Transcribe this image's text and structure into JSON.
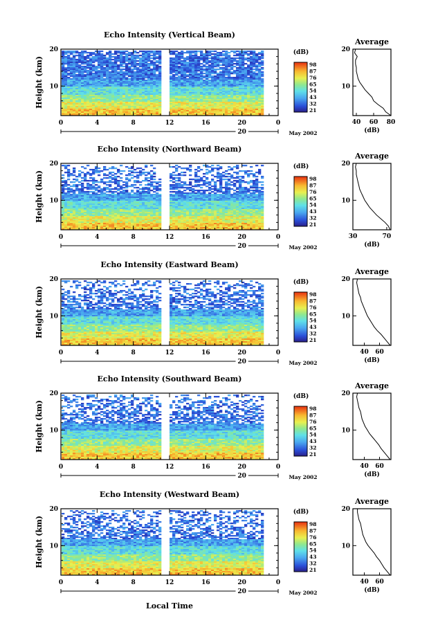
{
  "figure": {
    "date_label": "May 2002",
    "xlabel": "Local Time",
    "day_label": "20",
    "colorbar_unit": "(dB)",
    "colorbar_ticks": [
      "98",
      "87",
      "76",
      "65",
      "54",
      "43",
      "32",
      "21"
    ],
    "avg_title": "Average",
    "avg_xlabel": "(dB)"
  },
  "chart_data": [
    {
      "type": "heatmap",
      "title": "Echo Intensity (Vertical Beam)",
      "ylabel": "Height (km)",
      "xlim": [
        0,
        24
      ],
      "ylim": [
        2,
        20
      ],
      "x_ticks": [
        "0",
        "4",
        "8",
        "12",
        "16",
        "20",
        "0"
      ],
      "y_ticks": [
        "20",
        "10"
      ],
      "colorbar": {
        "range": [
          21,
          98
        ],
        "unit": "dB"
      },
      "data_gap_hours": [
        11.1,
        11.9
      ],
      "data_end_hour": 22.2,
      "average_profile": {
        "xlim": [
          36,
          80
        ],
        "x_ticks": [
          "40",
          "60",
          "80"
        ],
        "height_km": [
          2,
          3,
          4,
          5,
          6,
          7,
          8,
          9,
          10,
          11,
          12,
          13,
          14,
          15,
          16,
          17,
          18,
          19,
          20
        ],
        "db": [
          80,
          74,
          71,
          65,
          60,
          58,
          54,
          50,
          47,
          44,
          42,
          41,
          40,
          40,
          39,
          39,
          41,
          38,
          39
        ]
      }
    },
    {
      "type": "heatmap",
      "title": "Echo Intensity (Northward Beam)",
      "ylabel": "Height (km)",
      "xlim": [
        0,
        24
      ],
      "ylim": [
        2,
        20
      ],
      "x_ticks": [
        "0",
        "4",
        "8",
        "12",
        "16",
        "20",
        "0"
      ],
      "y_ticks": [
        "20",
        "10"
      ],
      "colorbar": {
        "range": [
          21,
          98
        ],
        "unit": "dB"
      },
      "data_gap_hours": [
        11.1,
        11.9
      ],
      "data_end_hour": 22.2,
      "average_profile": {
        "xlim": [
          30,
          75
        ],
        "x_ticks": [
          "30",
          "70"
        ],
        "height_km": [
          2,
          3,
          4,
          5,
          6,
          7,
          8,
          9,
          10,
          11,
          12,
          13,
          14,
          15,
          16,
          17,
          18,
          19,
          20
        ],
        "db": [
          74,
          72,
          68,
          63,
          58,
          54,
          50,
          47,
          44,
          42,
          40,
          38,
          37,
          36,
          35,
          34,
          34,
          33,
          34
        ]
      }
    },
    {
      "type": "heatmap",
      "title": "Echo Intensity (Eastward Beam)",
      "ylabel": "Height (km)",
      "xlim": [
        0,
        24
      ],
      "ylim": [
        2,
        20
      ],
      "x_ticks": [
        "0",
        "4",
        "8",
        "12",
        "16",
        "20",
        "0"
      ],
      "y_ticks": [
        "20",
        "10"
      ],
      "colorbar": {
        "range": [
          21,
          98
        ],
        "unit": "dB"
      },
      "data_gap_hours": [
        11.1,
        11.9
      ],
      "data_end_hour": 22.2,
      "average_profile": {
        "xlim": [
          25,
          75
        ],
        "x_ticks": [
          "40",
          "60"
        ],
        "height_km": [
          2,
          3,
          4,
          5,
          6,
          7,
          8,
          9,
          10,
          11,
          12,
          13,
          14,
          15,
          16,
          17,
          18,
          19,
          20
        ],
        "db": [
          74,
          70,
          66,
          62,
          57,
          53,
          50,
          47,
          44,
          42,
          40,
          38,
          36,
          35,
          33,
          32,
          31,
          30,
          31
        ]
      }
    },
    {
      "type": "heatmap",
      "title": "Echo Intensity (Southward Beam)",
      "ylabel": "Height (km)",
      "xlim": [
        0,
        24
      ],
      "ylim": [
        2,
        20
      ],
      "x_ticks": [
        "0",
        "4",
        "8",
        "12",
        "16",
        "20",
        "0"
      ],
      "y_ticks": [
        "20",
        "10"
      ],
      "colorbar": {
        "range": [
          21,
          98
        ],
        "unit": "dB"
      },
      "data_gap_hours": [
        11.1,
        11.9
      ],
      "data_end_hour": 22.2,
      "average_profile": {
        "xlim": [
          25,
          75
        ],
        "x_ticks": [
          "40",
          "60"
        ],
        "height_km": [
          2,
          3,
          4,
          5,
          6,
          7,
          8,
          9,
          10,
          11,
          12,
          13,
          14,
          15,
          16,
          17,
          18,
          19,
          20
        ],
        "db": [
          74,
          70,
          66,
          62,
          59,
          55,
          51,
          47,
          44,
          41,
          39,
          37,
          36,
          35,
          33,
          32,
          31,
          30,
          31
        ]
      }
    },
    {
      "type": "heatmap",
      "title": "Echo Intensity (Westward Beam)",
      "ylabel": "Height (km)",
      "xlim": [
        0,
        24
      ],
      "ylim": [
        2,
        20
      ],
      "x_ticks": [
        "0",
        "4",
        "8",
        "12",
        "16",
        "20",
        "0"
      ],
      "y_ticks": [
        "20",
        "10"
      ],
      "colorbar": {
        "range": [
          21,
          98
        ],
        "unit": "dB"
      },
      "data_gap_hours": [
        11.1,
        11.9
      ],
      "data_end_hour": 22.2,
      "average_profile": {
        "xlim": [
          25,
          75
        ],
        "x_ticks": [
          "40",
          "60"
        ],
        "height_km": [
          2,
          3,
          4,
          5,
          6,
          7,
          8,
          9,
          10,
          11,
          12,
          13,
          14,
          15,
          16,
          17,
          18,
          19,
          20
        ],
        "db": [
          74,
          70,
          66,
          63,
          60,
          56,
          53,
          49,
          45,
          42,
          40,
          38,
          37,
          36,
          35,
          33,
          32,
          31,
          31
        ]
      }
    }
  ]
}
